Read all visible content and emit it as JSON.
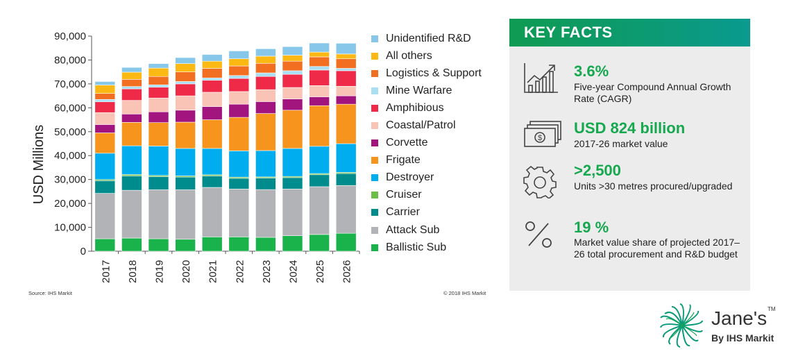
{
  "chart_data": {
    "type": "bar",
    "stacked": true,
    "categories": [
      "2017",
      "2018",
      "2019",
      "2020",
      "2021",
      "2022",
      "2023",
      "2024",
      "2025",
      "2026"
    ],
    "ylabel": "USD Millions",
    "xlabel": "",
    "ylim": [
      0,
      90000
    ],
    "yticks": [
      "0",
      "10,000",
      "20,000",
      "30,000",
      "40,000",
      "50,000",
      "60,000",
      "70,000",
      "80,000",
      "90,000"
    ],
    "grid": false,
    "legend_position": "right",
    "series": [
      {
        "name": "Ballistic Sub",
        "color": "#1ab24b",
        "values": [
          5200,
          5500,
          5200,
          5000,
          6000,
          6000,
          5800,
          6500,
          7000,
          7500
        ]
      },
      {
        "name": "Attack Sub",
        "color": "#b1b3b6",
        "values": [
          19000,
          20000,
          20500,
          20700,
          20700,
          20000,
          20000,
          19500,
          20000,
          20000
        ]
      },
      {
        "name": "Carrier",
        "color": "#008c8c",
        "values": [
          5300,
          6000,
          5500,
          5300,
          4800,
          4500,
          4800,
          4800,
          5000,
          5000
        ]
      },
      {
        "name": "Cruiser",
        "color": "#6abd45",
        "values": [
          500,
          600,
          500,
          500,
          500,
          500,
          500,
          500,
          500,
          500
        ]
      },
      {
        "name": "Destroyer",
        "color": "#00aeef",
        "values": [
          11000,
          12000,
          12300,
          11500,
          11000,
          11000,
          11000,
          11700,
          11400,
          12000
        ]
      },
      {
        "name": "Frigate",
        "color": "#f7941d",
        "values": [
          8500,
          9800,
          9800,
          11000,
          12000,
          14000,
          15500,
          16000,
          17000,
          16500
        ]
      },
      {
        "name": "Corvette",
        "color": "#a3157e",
        "values": [
          3500,
          3500,
          4500,
          5000,
          5500,
          5500,
          5000,
          4700,
          3700,
          3500
        ]
      },
      {
        "name": "Coastal/Patrol",
        "color": "#f9c3b6",
        "values": [
          5000,
          5700,
          5800,
          6000,
          6000,
          5300,
          5000,
          4800,
          4700,
          4000
        ]
      },
      {
        "name": "Amphibious",
        "color": "#ee2a48",
        "values": [
          4500,
          4800,
          4500,
          5000,
          5000,
          5500,
          5500,
          5500,
          6500,
          6500
        ]
      },
      {
        "name": "Mine Warfare",
        "color": "#a9def3",
        "values": [
          1000,
          1000,
          1000,
          1000,
          1000,
          1200,
          1500,
          1500,
          1500,
          1000
        ]
      },
      {
        "name": "Logistics & Support",
        "color": "#f26f21",
        "values": [
          2500,
          3000,
          3500,
          4000,
          4000,
          4000,
          4000,
          4000,
          4000,
          4000
        ]
      },
      {
        "name": "All others",
        "color": "#fdb913",
        "values": [
          3500,
          3000,
          3500,
          3500,
          3000,
          3000,
          3000,
          2500,
          2000,
          2000
        ]
      },
      {
        "name": "Unidentified R&D",
        "color": "#86c7ea",
        "values": [
          1500,
          2000,
          1900,
          2500,
          2800,
          3300,
          3100,
          3600,
          3800,
          4500
        ]
      }
    ]
  },
  "footer": {
    "source": "Source: IHS Markit",
    "copyright": "© 2018 IHS Markit"
  },
  "key_facts": {
    "title": "KEY FACTS",
    "accent_color": "#16a84f",
    "items": [
      {
        "icon": "growth-chart-icon",
        "value": "3.6%",
        "desc": "Five-year Compound Annual Growth Rate (CAGR)"
      },
      {
        "icon": "banknote-icon",
        "value": "USD 824 billion",
        "desc": "2017-26 market value"
      },
      {
        "icon": "gear-icon",
        "value": ">2,500",
        "desc": "Units >30 metres procured/upgraded"
      },
      {
        "icon": "percent-icon",
        "value": "19 %",
        "desc": "Market value share of projected 2017–26 total procurement and R&D budget"
      }
    ]
  },
  "brand": {
    "name": "Jane's",
    "tm": "TM",
    "by": "By IHS Markit"
  }
}
